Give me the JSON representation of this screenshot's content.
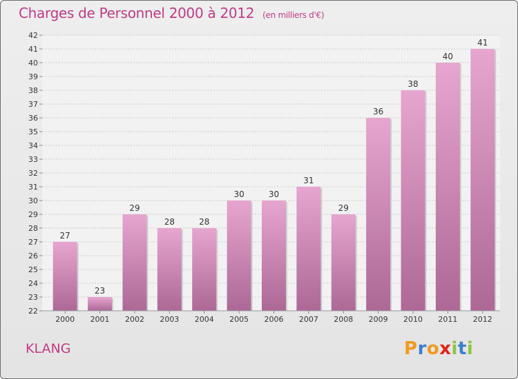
{
  "title": "Charges de Personnel 2000 à 2012",
  "subtitle": "(en milliers d'€)",
  "commune": "KLANG",
  "logo": {
    "letters": [
      "P",
      "r",
      "o",
      "x",
      "i",
      "t",
      "i"
    ],
    "colors": [
      "#f29a1f",
      "#3b7fd1",
      "#f29a1f",
      "#e2231a",
      "#8cc63f",
      "#3b7fd1",
      "#8cc63f"
    ]
  },
  "colors": {
    "title": "#c23a86",
    "bar_top": "#e6a6cf",
    "bar_bottom": "#ad6896",
    "grid": "#c9c9c9",
    "axis_text": "#333333"
  },
  "chart_data": {
    "type": "bar",
    "title": "Charges de Personnel 2000 à 2012",
    "subtitle": "(en milliers d'€)",
    "categories": [
      "2000",
      "2001",
      "2002",
      "2003",
      "2004",
      "2005",
      "2006",
      "2007",
      "2008",
      "2009",
      "2010",
      "2011",
      "2012"
    ],
    "values": [
      27,
      23,
      29,
      28,
      28,
      30,
      30,
      31,
      29,
      36,
      38,
      40,
      41
    ],
    "data_labels": [
      "27",
      "23",
      "29",
      "28",
      "28",
      "30",
      "30",
      "31",
      "29",
      "36",
      "38",
      "40",
      "41"
    ],
    "ylim": [
      22,
      42
    ],
    "yticks": [
      22,
      23,
      24,
      25,
      26,
      27,
      28,
      29,
      30,
      31,
      32,
      33,
      34,
      35,
      36,
      37,
      38,
      39,
      40,
      41,
      42
    ],
    "grid": true
  }
}
